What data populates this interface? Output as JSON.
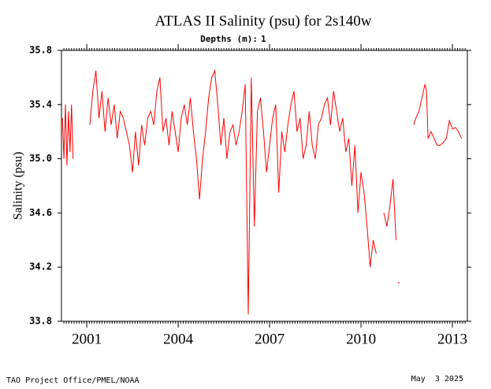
{
  "chart_data": {
    "type": "line",
    "title": "ATLAS II Salinity (psu) for 2s140w",
    "legend_title": "Depths (m):",
    "y_label": "Salinity (psu)",
    "footer_left": "TAO Project Office/PMEL/NOAA",
    "footer_right": "May  3 2025",
    "xlim": [
      2000.17,
      2013.49
    ],
    "xticks": [
      2001,
      2004,
      2007,
      2010,
      2013
    ],
    "ylim": [
      33.8,
      35.8
    ],
    "yticks": [
      33.8,
      34.2,
      34.6,
      {
        "value": 35,
        "label": "35.0"
      },
      35.4,
      35.8
    ],
    "x": [
      2000.2,
      2000.25,
      2000.3,
      2000.35,
      2000.4,
      2000.45,
      2000.5,
      2000.55,
      2000.8,
      2001.1,
      2001.2,
      2001.3,
      2001.4,
      2001.5,
      2001.6,
      2001.7,
      2001.8,
      2001.9,
      2002.0,
      2002.1,
      2002.2,
      2002.3,
      2002.4,
      2002.5,
      2002.6,
      2002.7,
      2002.8,
      2002.9,
      2003.0,
      2003.1,
      2003.2,
      2003.3,
      2003.4,
      2003.5,
      2003.6,
      2003.7,
      2003.8,
      2003.9,
      2004.0,
      2004.1,
      2004.2,
      2004.3,
      2004.4,
      2004.5,
      2004.6,
      2004.7,
      2004.8,
      2004.9,
      2005.0,
      2005.1,
      2005.2,
      2005.3,
      2005.4,
      2005.5,
      2005.6,
      2005.7,
      2005.8,
      2005.9,
      2006.0,
      2006.1,
      2006.2,
      2006.3,
      2006.4,
      2006.5,
      2006.6,
      2006.7,
      2006.8,
      2006.9,
      2007.0,
      2007.1,
      2007.2,
      2007.3,
      2007.4,
      2007.5,
      2007.6,
      2007.7,
      2007.8,
      2007.9,
      2008.0,
      2008.1,
      2008.2,
      2008.3,
      2008.4,
      2008.5,
      2008.6,
      2008.7,
      2008.8,
      2008.9,
      2009.0,
      2009.1,
      2009.2,
      2009.3,
      2009.4,
      2009.5,
      2009.6,
      2009.7,
      2009.8,
      2009.9,
      2010.0,
      2010.1,
      2010.2,
      2010.3,
      2010.4,
      2010.5,
      2010.65,
      2010.75,
      2010.85,
      2010.95,
      2011.05,
      2011.15,
      2011.19,
      2011.22,
      2011.26,
      2011.5,
      2011.73,
      2011.8,
      2011.9,
      2012.0,
      2012.1,
      2012.15,
      2012.2,
      2012.3,
      2012.4,
      2012.5,
      2012.6,
      2012.7,
      2012.8,
      2012.9,
      2013.0,
      2013.1,
      2013.2,
      2013.3
    ],
    "series": [
      {
        "name": "1",
        "color": "#ff0000",
        "values": [
          35.3,
          35.0,
          35.4,
          34.95,
          35.35,
          35.05,
          35.4,
          35.0,
          null,
          35.25,
          35.5,
          35.65,
          35.3,
          35.5,
          35.2,
          35.45,
          35.25,
          35.4,
          35.15,
          35.35,
          35.3,
          35.2,
          35.1,
          34.9,
          35.2,
          34.95,
          35.25,
          35.1,
          35.3,
          35.35,
          35.25,
          35.5,
          35.6,
          35.2,
          35.3,
          35.1,
          35.35,
          35.2,
          35.05,
          35.3,
          35.4,
          35.25,
          35.45,
          35.2,
          35.0,
          34.7,
          35.0,
          35.2,
          35.45,
          35.6,
          35.65,
          35.4,
          35.1,
          35.3,
          35.0,
          35.2,
          35.25,
          35.1,
          35.2,
          35.35,
          35.55,
          33.85,
          35.6,
          34.5,
          35.35,
          35.45,
          35.2,
          34.9,
          35.1,
          35.3,
          35.4,
          34.75,
          35.2,
          35.05,
          35.25,
          35.4,
          35.5,
          35.2,
          35.3,
          35.0,
          35.1,
          35.35,
          35.1,
          35.0,
          35.25,
          35.3,
          35.4,
          35.45,
          35.25,
          35.5,
          35.35,
          35.2,
          35.3,
          35.05,
          35.15,
          34.8,
          35.1,
          34.6,
          34.9,
          34.75,
          34.5,
          34.2,
          34.4,
          34.3,
          null,
          34.6,
          34.5,
          34.65,
          34.85,
          34.4,
          null,
          34.09,
          34.08,
          null,
          35.25,
          35.3,
          35.35,
          35.45,
          35.55,
          35.5,
          35.15,
          35.2,
          35.15,
          35.1,
          35.1,
          35.12,
          35.15,
          35.28,
          35.22,
          35.23,
          35.2,
          35.15
        ]
      }
    ]
  }
}
